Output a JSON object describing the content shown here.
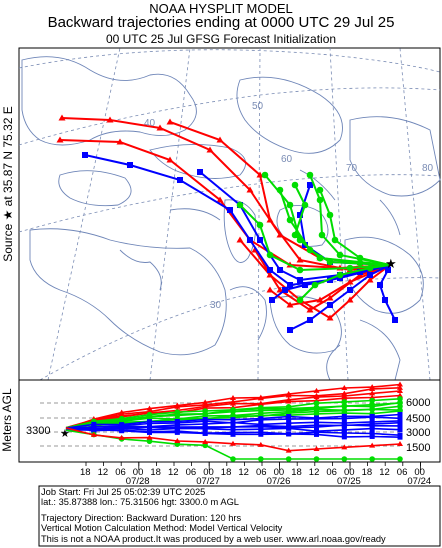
{
  "header": {
    "model": "NOAA HYSPLIT MODEL",
    "title": "Backward trajectories ending at 0000 UTC 29 Jul 25",
    "subtitle": "00 UTC 25 Jul    GFSG  Forecast Initialization"
  },
  "source_label": "Source ★ at   35.87 N   75.32 E",
  "vertical_label": "Meters AGL",
  "map": {
    "lon_labels": [
      "40",
      "50",
      "60",
      "70",
      "80"
    ],
    "lat_labels": [
      "30"
    ],
    "series_colors": {
      "red": "#ff0000",
      "blue": "#0000ff",
      "green": "#00dd00"
    },
    "source_marker": "star-icon"
  },
  "profile": {
    "start_height_label": "3300",
    "y_ticks": [
      "6000",
      "4500",
      "3000",
      "1500"
    ],
    "hour_ticks": [
      "18",
      "12",
      "06",
      "00",
      "18",
      "12",
      "06",
      "00",
      "18",
      "12",
      "06",
      "00",
      "18",
      "12",
      "06",
      "00",
      "18",
      "12",
      "06",
      "00"
    ],
    "date_ticks": [
      "07/28",
      "07/27",
      "07/26",
      "07/25",
      "07/24"
    ]
  },
  "info": {
    "job_start": "Job Start: Fri Jul 25 05:02:39 UTC 2025",
    "location": "lat.: 35.87388   lon.: 75.31506   hgt: 3300.0 m AGL",
    "direction": "Trajectory Direction: Backward       Duration: 120 hrs",
    "vertical_method": "Vertical Motion Calculation Method: Model Vertical Velocity",
    "disclaimer": "This is not a NOAA product.It was produced by a web user. www.arl.noaa.gov/ready"
  }
}
